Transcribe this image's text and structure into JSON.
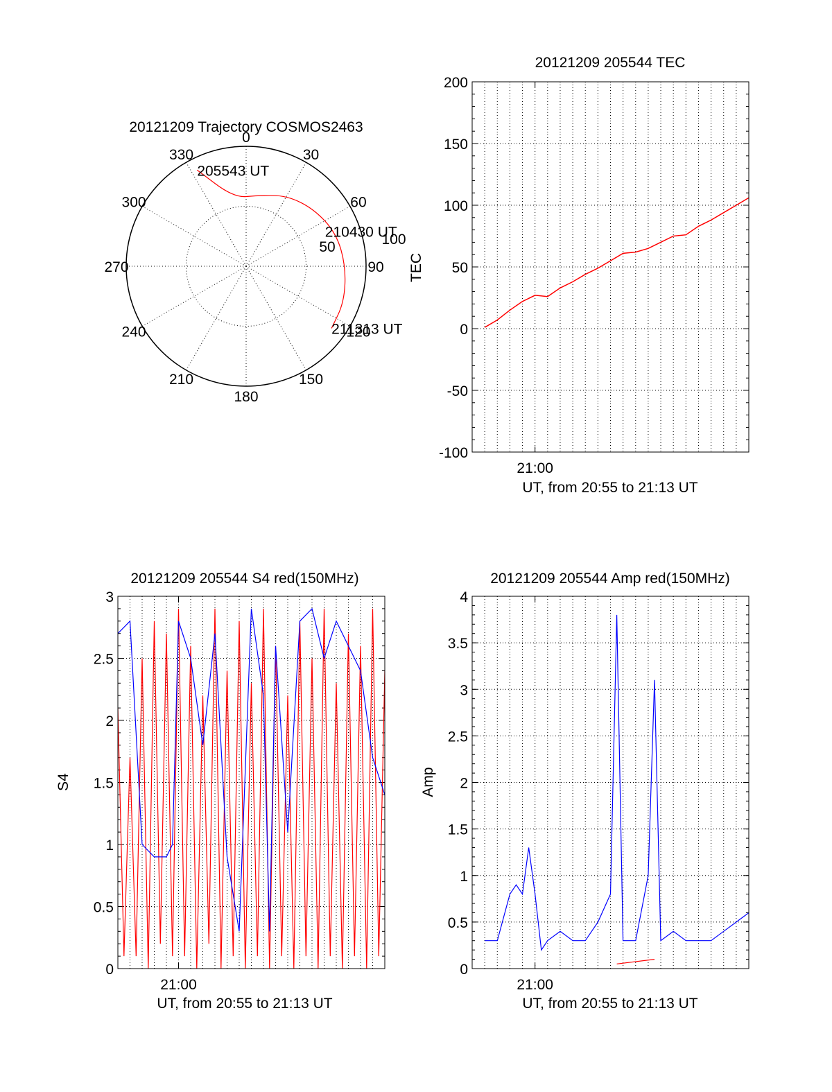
{
  "chart_data": [
    {
      "type": "polar",
      "title": "20121209 Trajectory COSMOS2463",
      "angle_labels": [
        "0",
        "30",
        "60",
        "90",
        "120",
        "150",
        "180",
        "210",
        "240",
        "270",
        "300",
        "330"
      ],
      "radial_labels": [
        "50",
        "100"
      ],
      "grid": true,
      "trajectory": {
        "color": "#ff0000",
        "points": [
          {
            "azimuth": 333,
            "range": 90
          },
          {
            "azimuth": 350,
            "range": 58
          },
          {
            "azimuth": 10,
            "range": 60
          },
          {
            "azimuth": 30,
            "range": 68
          },
          {
            "azimuth": 50,
            "range": 74
          },
          {
            "azimuth": 70,
            "range": 80
          },
          {
            "azimuth": 90,
            "range": 83
          },
          {
            "azimuth": 110,
            "range": 87
          },
          {
            "azimuth": 126,
            "range": 88
          }
        ],
        "annotations": [
          {
            "text": "205543 UT",
            "azimuth": 333,
            "range": 90
          },
          {
            "text": "210430 UT",
            "azimuth": 66,
            "range": 72
          },
          {
            "text": "211313 UT",
            "azimuth": 126,
            "range": 88
          }
        ]
      }
    },
    {
      "type": "line",
      "title": "20121209 205544 TEC",
      "ylabel": "TEC",
      "xlabel": "UT, from 20:55 to 21:13 UT",
      "xlim": [
        "20:55:00",
        "21:17:00"
      ],
      "ylim": [
        -100,
        200
      ],
      "yticks": [
        -100,
        -50,
        0,
        50,
        100,
        150,
        200
      ],
      "xticks": [
        {
          "time": "21:00:00",
          "label": "21:00"
        }
      ],
      "grid": true,
      "series": [
        {
          "color": "#ff0000",
          "x": [
            "20:56:00",
            "20:57:00",
            "20:58:00",
            "20:59:00",
            "21:00:00",
            "21:01:00",
            "21:02:00",
            "21:03:00",
            "21:04:00",
            "21:05:00",
            "21:06:00",
            "21:07:00",
            "21:08:00",
            "21:09:00",
            "21:10:00",
            "21:11:00",
            "21:12:00",
            "21:13:00",
            "21:14:00",
            "21:15:00",
            "21:16:00",
            "21:17:00"
          ],
          "y": [
            1,
            7,
            15,
            22,
            27,
            26,
            33,
            38,
            44,
            49,
            55,
            61,
            62,
            65,
            70,
            75,
            76,
            83,
            88,
            94,
            100,
            106
          ]
        }
      ]
    },
    {
      "type": "line",
      "title": "20121209 205544 S4 red(150MHz)",
      "ylabel": "S4",
      "xlabel": "UT, from 20:55 to 21:13 UT",
      "xlim": [
        "20:55:00",
        "21:17:00"
      ],
      "ylim": [
        0,
        3
      ],
      "yticks": [
        0,
        0.5,
        1,
        1.5,
        2,
        2.5,
        3
      ],
      "xticks": [
        {
          "time": "21:00:00",
          "label": "21:00"
        }
      ],
      "grid": true,
      "series": [
        {
          "color": "#ff0000",
          "x": [
            "20:55:00",
            "20:55:30",
            "20:56:00",
            "20:56:30",
            "20:57:00",
            "20:57:30",
            "20:58:00",
            "20:58:30",
            "20:59:00",
            "20:59:30",
            "21:00:00",
            "21:00:30",
            "21:01:00",
            "21:01:30",
            "21:02:00",
            "21:02:30",
            "21:03:00",
            "21:03:30",
            "21:04:00",
            "21:04:30",
            "21:05:00",
            "21:05:30",
            "21:06:00",
            "21:06:30",
            "21:07:00",
            "21:07:30",
            "21:08:00",
            "21:08:30",
            "21:09:00",
            "21:09:30",
            "21:10:00",
            "21:10:30",
            "21:11:00",
            "21:11:30",
            "21:12:00",
            "21:12:30",
            "21:13:00",
            "21:13:30",
            "21:14:00",
            "21:14:30",
            "21:15:00",
            "21:15:30",
            "21:16:00",
            "21:16:30",
            "21:17:00"
          ],
          "y": [
            2.1,
            0.1,
            1.7,
            0.1,
            2.5,
            0.0,
            2.8,
            0.2,
            2.7,
            0.1,
            2.9,
            0.1,
            2.6,
            0.0,
            2.2,
            0.2,
            2.9,
            0.0,
            2.4,
            0.1,
            2.8,
            0.0,
            2.3,
            0.1,
            2.9,
            0.0,
            2.6,
            0.1,
            2.2,
            0.0,
            2.8,
            0.1,
            2.5,
            0.0,
            2.9,
            0.1,
            2.3,
            0.0,
            2.7,
            0.1,
            2.6,
            0.0,
            2.9,
            0.1,
            2.4
          ]
        },
        {
          "color": "#0000ff",
          "x": [
            "20:55:00",
            "20:56:00",
            "20:57:00",
            "20:58:00",
            "20:59:00",
            "20:59:30",
            "21:00:00",
            "21:01:00",
            "21:02:00",
            "21:03:00",
            "21:04:00",
            "21:05:00",
            "21:06:00",
            "21:07:00",
            "21:07:30",
            "21:08:00",
            "21:09:00",
            "21:10:00",
            "21:11:00",
            "21:12:00",
            "21:13:00",
            "21:14:00",
            "21:15:00",
            "21:16:00",
            "21:17:00"
          ],
          "y": [
            2.7,
            2.8,
            1.0,
            0.9,
            0.9,
            1.0,
            2.8,
            2.5,
            1.8,
            2.7,
            0.9,
            0.3,
            2.9,
            2.2,
            0.3,
            2.6,
            1.1,
            2.8,
            2.9,
            2.5,
            2.8,
            2.6,
            2.4,
            1.7,
            1.4
          ]
        }
      ]
    },
    {
      "type": "line",
      "title": "20121209 205544 Amp red(150MHz)",
      "ylabel": "Amp",
      "xlabel": "UT, from 20:55 to 21:13 UT",
      "xlim": [
        "20:55:00",
        "21:17:00"
      ],
      "ylim": [
        0,
        4
      ],
      "yticks": [
        0,
        0.5,
        1,
        1.5,
        2,
        2.5,
        3,
        3.5,
        4
      ],
      "xticks": [
        {
          "time": "21:00:00",
          "label": "21:00"
        }
      ],
      "grid": true,
      "series": [
        {
          "color": "#0000ff",
          "x": [
            "20:56:00",
            "20:57:00",
            "20:58:00",
            "20:58:30",
            "20:59:00",
            "20:59:30",
            "21:00:00",
            "21:00:30",
            "21:01:00",
            "21:02:00",
            "21:03:00",
            "21:04:00",
            "21:05:00",
            "21:06:00",
            "21:06:30",
            "21:07:00",
            "21:08:00",
            "21:09:00",
            "21:09:30",
            "21:10:00",
            "21:11:00",
            "21:12:00",
            "21:13:00",
            "21:14:00",
            "21:15:00",
            "21:16:00",
            "21:17:00"
          ],
          "y": [
            0.3,
            0.3,
            0.8,
            0.9,
            0.8,
            1.3,
            0.8,
            0.2,
            0.3,
            0.4,
            0.3,
            0.3,
            0.5,
            0.8,
            3.8,
            0.3,
            0.3,
            1.0,
            3.1,
            0.3,
            0.4,
            0.3,
            0.3,
            0.3,
            0.4,
            0.5,
            0.6
          ]
        },
        {
          "color": "#ff0000",
          "x": [
            "21:06:30",
            "21:09:30"
          ],
          "y": [
            0.05,
            0.1
          ]
        }
      ]
    }
  ]
}
